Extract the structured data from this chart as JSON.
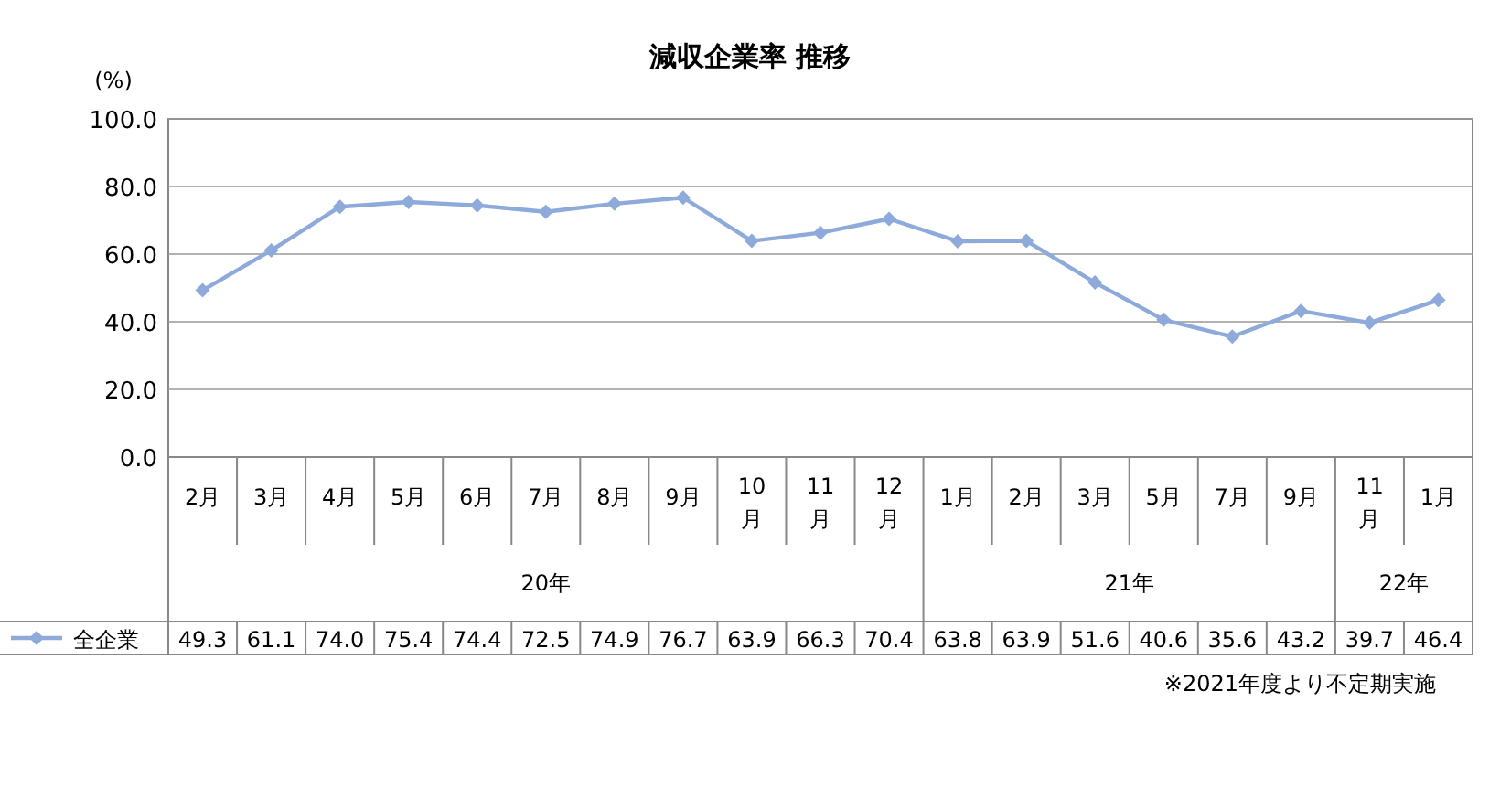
{
  "chart_data": {
    "type": "line",
    "title": "減収企業率 推移",
    "ylabel": "(%)",
    "categories": [
      "2月",
      "3月",
      "4月",
      "5月",
      "6月",
      "7月",
      "8月",
      "9月",
      "10月",
      "11月",
      "12月",
      "1月",
      "2月",
      "3月",
      "5月",
      "7月",
      "9月",
      "11月",
      "1月"
    ],
    "series": [
      {
        "name": "全企業",
        "color": "#8eaadb",
        "values": [
          49.3,
          61.1,
          74.0,
          75.4,
          74.4,
          72.5,
          74.9,
          76.7,
          63.9,
          66.3,
          70.4,
          63.8,
          63.9,
          51.6,
          40.6,
          35.6,
          43.2,
          39.7,
          46.4
        ],
        "value_labels": [
          "49.3",
          "61.1",
          "74.0",
          "75.4",
          "74.4",
          "72.5",
          "74.9",
          "76.7",
          "63.9",
          "66.3",
          "70.4",
          "63.8",
          "63.9",
          "51.6",
          "40.6",
          "35.6",
          "43.2",
          "39.7",
          "46.4"
        ]
      }
    ],
    "ylim": [
      0,
      100
    ],
    "yticks": [
      {
        "value": 0,
        "label": "0.0"
      },
      {
        "value": 20,
        "label": "20.0"
      },
      {
        "value": 40,
        "label": "40.0"
      },
      {
        "value": 60,
        "label": "60.0"
      },
      {
        "value": 80,
        "label": "80.0"
      },
      {
        "value": 100,
        "label": "100.0"
      }
    ],
    "grid": "y",
    "marker": "diamond",
    "line_style": "solid",
    "legend": "bottom",
    "annotations": [
      "20年",
      "21年",
      "22年",
      "※2021年度より不定期実施"
    ]
  }
}
